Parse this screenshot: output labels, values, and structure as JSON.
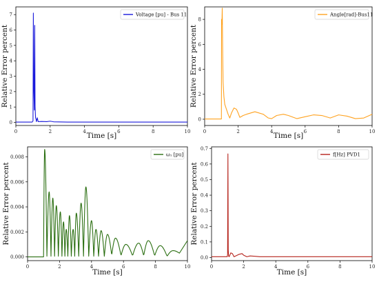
{
  "chart_data": [
    {
      "type": "line",
      "xlabel": "Time [s]",
      "ylabel": "Relative Error percent",
      "xlim": [
        0,
        10
      ],
      "ylim": [
        -0.2,
        7.5
      ],
      "xticks": [
        0,
        2,
        4,
        6,
        8,
        10
      ],
      "yticks": [
        0,
        1,
        2,
        3,
        4,
        5,
        6,
        7
      ],
      "legend": "top-right",
      "series": [
        {
          "name": "Voltage [pu] - Bus 11",
          "color": "#1a1adb",
          "x": [
            0,
            0.95,
            1.0,
            1.02,
            1.05,
            1.08,
            1.1,
            1.12,
            1.15,
            1.18,
            1.2,
            1.25,
            1.3,
            1.5,
            1.8,
            2.0,
            2.2,
            2.5,
            3.0,
            4.0,
            6.0,
            8.0,
            10.0
          ],
          "y": [
            0.02,
            0.02,
            0.1,
            7.1,
            2.0,
            0.8,
            6.3,
            1.0,
            0.3,
            0.2,
            0.05,
            0.3,
            0.05,
            0.06,
            0.05,
            0.08,
            0.04,
            0.03,
            0.02,
            0.02,
            0.02,
            0.02,
            0.02
          ]
        }
      ]
    },
    {
      "type": "line",
      "xlabel": "Time [s]",
      "ylabel": "Relative Error percent",
      "xlim": [
        0,
        10
      ],
      "ylim": [
        -0.5,
        9
      ],
      "xticks": [
        0,
        2,
        4,
        6,
        8,
        10
      ],
      "yticks": [
        0,
        2,
        4,
        6,
        8
      ],
      "legend": "top-right",
      "series": [
        {
          "name": "Angle[rad]-Bus11",
          "color": "#ffa21f",
          "x": [
            0,
            1.0,
            1.01,
            1.03,
            1.05,
            1.08,
            1.1,
            1.15,
            1.2,
            1.3,
            1.4,
            1.5,
            1.6,
            1.75,
            1.9,
            2.0,
            2.1,
            2.3,
            2.5,
            3.0,
            3.5,
            3.8,
            4.0,
            4.3,
            4.7,
            5.0,
            5.5,
            6.0,
            6.5,
            7.0,
            7.5,
            8.0,
            8.5,
            9.0,
            9.5,
            10.0
          ],
          "y": [
            0.02,
            0.02,
            8.0,
            7.6,
            8.9,
            5.0,
            3.0,
            1.8,
            1.2,
            0.8,
            0.4,
            0.1,
            0.5,
            0.9,
            0.8,
            0.5,
            0.15,
            0.3,
            0.4,
            0.6,
            0.4,
            0.1,
            0.05,
            0.3,
            0.4,
            0.3,
            0.05,
            0.2,
            0.35,
            0.3,
            0.1,
            0.35,
            0.25,
            0.05,
            0.1,
            0.4
          ]
        }
      ]
    },
    {
      "type": "line",
      "xlabel": "Time [s]",
      "ylabel": "Relative Error percent",
      "xlim": [
        0,
        10
      ],
      "ylim": [
        -0.0003,
        0.0088
      ],
      "xticks": [
        0,
        2,
        4,
        6,
        8,
        10
      ],
      "yticks": [
        0.0,
        0.002,
        0.004,
        0.006,
        0.008
      ],
      "ytick_labels": [
        "0.000",
        "0.002",
        "0.004",
        "0.006",
        "0.008"
      ],
      "legend": "top-right",
      "series": [
        {
          "name": "ω₁ [pu]",
          "color": "#2a6e10",
          "peaks": [
            [
              1.07,
              0.0086
            ],
            [
              1.35,
              0.0052
            ],
            [
              1.58,
              0.0047
            ],
            [
              1.8,
              0.0041
            ],
            [
              2.05,
              0.0036
            ],
            [
              2.25,
              0.0028
            ],
            [
              2.42,
              0.0022
            ],
            [
              2.62,
              0.0033
            ],
            [
              2.85,
              0.0022
            ],
            [
              3.05,
              0.0035
            ],
            [
              3.35,
              0.0043
            ],
            [
              3.65,
              0.0056
            ],
            [
              4.0,
              0.0029
            ],
            [
              4.28,
              0.0022
            ],
            [
              4.6,
              0.0021
            ],
            [
              5.0,
              0.0018
            ],
            [
              5.5,
              0.0015
            ],
            [
              6.15,
              0.001
            ],
            [
              6.95,
              0.0011
            ],
            [
              7.55,
              0.0013
            ],
            [
              8.3,
              0.0009
            ],
            [
              9.1,
              0.0005
            ]
          ],
          "start": [
            0,
            0.0
          ],
          "end": [
            10.0,
            0.0013
          ]
        }
      ]
    },
    {
      "type": "line",
      "xlabel": "Time [s]",
      "ylabel": "Relative Error percent",
      "xlim": [
        0,
        10
      ],
      "ylim": [
        -0.02,
        0.71
      ],
      "xticks": [
        0,
        2,
        4,
        6,
        8,
        10
      ],
      "yticks": [
        0.0,
        0.1,
        0.2,
        0.3,
        0.4,
        0.5,
        0.6,
        0.7
      ],
      "ytick_labels": [
        "0.0",
        "0.1",
        "0.2",
        "0.3",
        "0.4",
        "0.5",
        "0.6",
        "0.7"
      ],
      "legend": "top-right",
      "series": [
        {
          "name": "f[Hz] PVD1",
          "color": "#b5221a",
          "x": [
            0,
            0.98,
            1.0,
            1.02,
            1.04,
            1.06,
            1.1,
            1.2,
            1.3,
            1.4,
            1.5,
            1.7,
            1.9,
            2.0,
            2.2,
            2.4,
            2.7,
            3.0,
            4.0,
            6.0,
            8.0,
            10.0
          ],
          "y": [
            0.005,
            0.005,
            0.02,
            0.665,
            0.05,
            0.01,
            0.005,
            0.03,
            0.025,
            0.005,
            0.01,
            0.02,
            0.025,
            0.015,
            0.005,
            0.01,
            0.008,
            0.005,
            0.005,
            0.005,
            0.005,
            0.005
          ]
        }
      ]
    }
  ]
}
